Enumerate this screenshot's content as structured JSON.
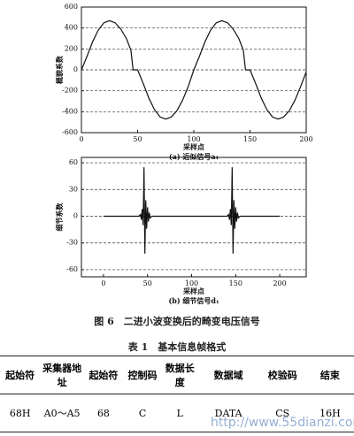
{
  "chart_data": [
    {
      "type": "line",
      "y_label": "概貌系数",
      "x_label": "采样点",
      "caption": "(a) 近似信号a₁",
      "x": [
        0,
        5,
        10,
        15,
        20,
        25,
        30,
        35,
        40,
        44,
        46,
        50,
        55,
        60,
        65,
        70,
        75,
        80,
        85,
        90,
        95,
        100,
        105,
        110,
        115,
        120,
        125,
        130,
        135,
        140,
        144,
        146,
        150,
        155,
        160,
        165,
        170,
        175,
        180,
        185,
        190,
        195,
        200
      ],
      "series": [
        {
          "color": "#111111",
          "values": [
            0,
            130,
            270,
            380,
            450,
            470,
            450,
            390,
            300,
            190,
            0,
            0,
            -130,
            -270,
            -380,
            -450,
            -470,
            -450,
            -390,
            -290,
            -160,
            0,
            130,
            270,
            380,
            450,
            470,
            450,
            390,
            300,
            190,
            0,
            0,
            -130,
            -270,
            -380,
            -450,
            -470,
            -450,
            -390,
            -290,
            -160,
            -20
          ]
        }
      ],
      "xlim": [
        0,
        200
      ],
      "xticks": [
        0,
        50,
        100,
        150,
        200
      ],
      "ylim": [
        -600,
        600
      ],
      "yticks": [
        600,
        400,
        200,
        0,
        -200,
        -400,
        -600
      ],
      "grid": true
    },
    {
      "type": "line",
      "y_label": "细节系数",
      "x_label": "采样点",
      "caption": "(b) 细节信号d₁",
      "x": [
        0,
        40,
        42,
        43,
        44,
        45,
        46,
        47,
        48,
        49,
        50,
        51,
        52,
        53,
        55,
        140,
        142,
        143,
        144,
        145,
        146,
        147,
        148,
        149,
        150,
        151,
        152,
        153,
        155,
        200
      ],
      "series": [
        {
          "color": "#111111",
          "values": [
            0,
            0,
            2,
            -4,
            8,
            -10,
            55,
            -42,
            18,
            -14,
            10,
            -6,
            4,
            -2,
            0,
            0,
            2,
            -4,
            8,
            -10,
            55,
            -42,
            18,
            -14,
            10,
            -6,
            4,
            -2,
            0,
            0
          ]
        }
      ],
      "xlim": [
        -25,
        230
      ],
      "xticks": [
        0,
        50,
        100,
        150,
        200
      ],
      "ylim": [
        -68,
        66
      ],
      "yticks": [
        60,
        30,
        0,
        -30,
        -60
      ],
      "grid": true
    }
  ],
  "figure_caption": "图 6　二进小波变换后的畸变电压信号",
  "table": {
    "caption": "表 1　基本信息帧格式",
    "header": [
      "起始符",
      "采集器地址",
      "起始符",
      "控制码",
      "数据长度",
      "数据域",
      "校验码",
      "结束"
    ],
    "rows": [
      [
        "68H",
        "A0～A5",
        "68",
        "C",
        "L",
        "DATA",
        "CS",
        "16H"
      ]
    ]
  },
  "watermark": "http://www.55dianzi.com"
}
